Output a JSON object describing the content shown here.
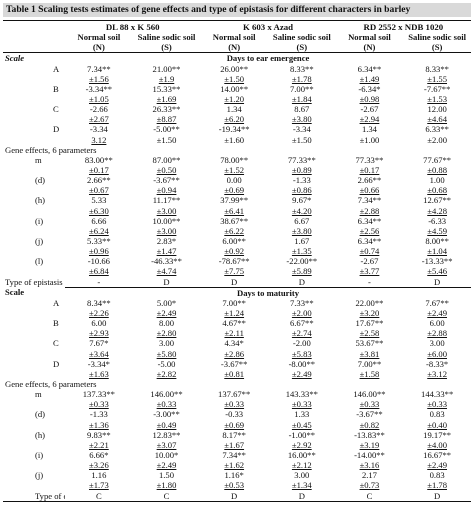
{
  "caption": "Table 1 Scaling tests estimates of gene effects and type of epistasis for different characters in barley",
  "headers": {
    "crosses": [
      "DL 88 x K 560",
      "K 603 x Azad",
      "RD 2552 x NDB 1020"
    ],
    "soil_row": [
      "Normal soil",
      "Saline sodic soil",
      "Normal soil",
      "Saline sodic soil",
      "Normal soil",
      "Saline sodic soil"
    ],
    "code_row": [
      "(N)",
      "(S)",
      "(N)",
      "(S)",
      "(N)",
      "(S)"
    ]
  },
  "labels": {
    "scale_italic": "Scale",
    "scale_bold": "Scale",
    "gene_effects": "Gene effects, 6 parameters",
    "type_epistasis": "Type of epistasis",
    "section1": "Days to ear emergence",
    "section2": "Days to maturity"
  },
  "s1": {
    "A": [
      [
        "7.34**",
        "21.00**",
        "26.00**",
        "8.33**",
        "6.34**",
        "8.33**"
      ],
      [
        "±1.56",
        "±1.9",
        "±1.50",
        "±1.78",
        "±1.49",
        "±1.55"
      ]
    ],
    "B": [
      [
        "-3.34**",
        "15.33**",
        "14.00**",
        "7.00**",
        "-6.34*",
        "-7.67**"
      ],
      [
        "±1.05",
        "±1.69",
        "±1.20",
        "±1.84",
        "±0.98",
        "±1.53"
      ]
    ],
    "C": [
      [
        "-2.66",
        "26.33**",
        "1.34",
        "8.67",
        "-2.67",
        "12.00"
      ],
      [
        "±2.67",
        "±8.87",
        "±6.20",
        "±3.80",
        "±2.94",
        "±4.64"
      ]
    ],
    "D": [
      [
        "-3.34",
        "-5.00**",
        "-19.34**",
        "-3.34",
        "1.34",
        "6.33**"
      ],
      [
        "3.12",
        "±1.50",
        "±1.60",
        "±1.50",
        "±1.00",
        "±2.00"
      ]
    ],
    "m": [
      [
        "83.00**",
        "87.00**",
        "78.00**",
        "77.33**",
        "77.33**",
        "77.67**"
      ],
      [
        "±0.17",
        "±0.50",
        "±1.52",
        "±0.89",
        "±0.17",
        "±0.88"
      ]
    ],
    "(d)": [
      [
        "2.66**",
        "-3.67**",
        "0.00",
        "-1.33",
        "2.66**",
        "1.00"
      ],
      [
        "±0.67",
        "±0.94",
        "±0.69",
        "±0.86",
        "±0.66",
        "±0.68"
      ]
    ],
    "(h)": [
      [
        "5.33",
        "11.17**",
        "37.99**",
        "9.67*",
        "7.34**",
        "12.67**"
      ],
      [
        "±6.30",
        "±3.00",
        "±6.41",
        "±4.20",
        "±2.88",
        "±4.28"
      ]
    ],
    "(i)": [
      [
        "6.66",
        "10.00**",
        "38.67**",
        "6.67",
        "6.34**",
        "-6.33"
      ],
      [
        "±6.24",
        "±3.00",
        "±6.22",
        "±3.80",
        "±2.56",
        "±4.59"
      ]
    ],
    "(j)": [
      [
        "5.33**",
        "2.83*",
        "6.00**",
        "1.67",
        "6.34**",
        "8.00**"
      ],
      [
        "±0.96",
        "±1.47",
        "±0.92",
        "±1.35",
        "±0.74",
        "±1.04"
      ]
    ],
    "(l)": [
      [
        "-10.66",
        "-46.33**",
        "-78.67**",
        "-22.00**",
        "-2.67",
        "-13.33**"
      ],
      [
        "±6.84",
        "±4.74",
        "±7.75",
        "±5.89",
        "±3.77",
        "±5.46"
      ]
    ],
    "type": [
      "-",
      "D",
      "D",
      "D",
      "-",
      "D"
    ]
  },
  "s2": {
    "A": [
      [
        "8.34**",
        "5.00*",
        "7.00**",
        "7.33**",
        "22.00**",
        "7.67**"
      ],
      [
        "±2.26",
        "±2.49",
        "±1.24",
        "±2.00",
        "±3.20",
        "±2.49"
      ]
    ],
    "B": [
      [
        "6.00",
        "8.00",
        "4.67**",
        "6.67**",
        "17.67**",
        "6.00"
      ],
      [
        "±2.93",
        "±2.80",
        "±2.11",
        "±2.74",
        "±2.58",
        "±2.88"
      ]
    ],
    "C": [
      [
        "7.67*",
        "3.00",
        "4.34*",
        "-2.00",
        "53.67**",
        "3.00"
      ],
      [
        "±3.64",
        "±5.80",
        "±2.86",
        "±5.83",
        "±3.81",
        "±6.00"
      ]
    ],
    "D": [
      [
        "-3.34*",
        "-5.00",
        "-3.67**",
        "-8.00**",
        "7.00**",
        "-8.33*"
      ],
      [
        "±1.63",
        "±2.82",
        "±0.81",
        "±2.49",
        "±1.58",
        "±3.12"
      ]
    ],
    "m": [
      [
        "137.33**",
        "146.00**",
        "137.67**",
        "143.33**",
        "146.00**",
        "144.33**"
      ],
      [
        "±0.33",
        "±0.33",
        "±0.33",
        "±0.33",
        "±0.33",
        "±0.33"
      ]
    ],
    "(d)": [
      [
        "-1.33",
        "-3.00**",
        "-0.33",
        "1.33",
        "-3.67**",
        "0.83"
      ],
      [
        "±1.36",
        "±0.49",
        "±0.69",
        "±0.45",
        "±0.82",
        "±0.40"
      ]
    ],
    "(h)": [
      [
        "9.83**",
        "12.83**",
        "8.17**",
        "-1.00**",
        "-13.83**",
        "19.17**"
      ],
      [
        "±2.21",
        "±3.07",
        "±1.67",
        "±2.92",
        "±3.19",
        "±4.00"
      ]
    ],
    "(i)": [
      [
        "6.66*",
        "10.00*",
        "7.34**",
        "16.00**",
        "-14.00**",
        "16.67**"
      ],
      [
        "±3.26",
        "±2.49",
        "±1.62",
        "±2.12",
        "±3.16",
        "±2.49"
      ]
    ],
    "(j)": [
      [
        "1.16",
        "1.50",
        "1.16*",
        "3.00",
        "2.17",
        "0.83"
      ],
      [
        "±1.73",
        "±1.80",
        "±0.53",
        "±1.34",
        "±0.73",
        "±1.78"
      ]
    ]
  },
  "s2_type": [
    "C",
    "C",
    "D",
    "D",
    "C",
    "D"
  ],
  "rows": {
    "scale_keys": [
      "A",
      "B",
      "C",
      "D"
    ],
    "gene_keys1": [
      "m",
      "(d)",
      "(h)",
      "(i)",
      "(j)",
      "(l)"
    ],
    "gene_keys2": [
      "m",
      "(d)",
      "(h)",
      "(i)",
      "(j)"
    ]
  }
}
